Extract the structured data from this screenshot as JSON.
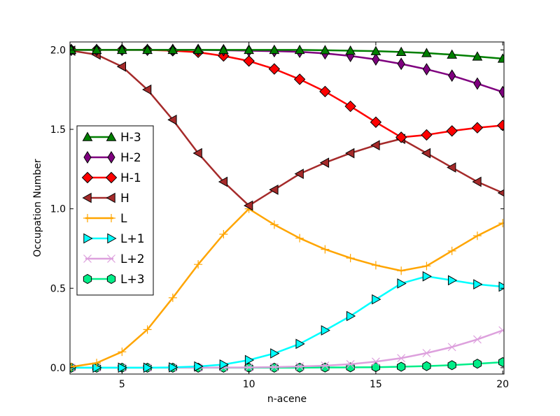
{
  "chart_data": {
    "type": "line",
    "title": "",
    "xlabel": "n-acene",
    "ylabel": "Occupation Number",
    "xlim": [
      2.95,
      20.05
    ],
    "ylim": [
      -0.04,
      2.05
    ],
    "xticks": [
      5,
      10,
      15,
      20
    ],
    "yticks": [
      0.0,
      0.5,
      1.0,
      1.5,
      2.0
    ],
    "xtick_labels": [
      "5",
      "10",
      "15",
      "20"
    ],
    "ytick_labels": [
      "0.0",
      "0.5",
      "1.0",
      "1.5",
      "2.0"
    ],
    "grid": false,
    "legend_position": "center-left",
    "x": [
      3,
      4,
      5,
      6,
      7,
      8,
      9,
      10,
      11,
      12,
      13,
      14,
      15,
      16,
      17,
      18,
      19,
      20
    ],
    "series": [
      {
        "name": "H-3",
        "color": "#007F00",
        "marker": "triangle-up",
        "values": [
          2.0,
          2.0,
          2.0,
          2.0,
          2.0,
          2.0,
          2.0,
          2.0,
          2.0,
          2.0,
          1.998,
          1.995,
          1.992,
          1.987,
          1.98,
          1.97,
          1.958,
          1.945
        ]
      },
      {
        "name": "H-2",
        "color": "#7F007F",
        "marker": "thin-diamond",
        "values": [
          2.0,
          2.0,
          2.0,
          2.0,
          2.0,
          2.0,
          1.998,
          1.995,
          1.992,
          1.988,
          1.978,
          1.962,
          1.94,
          1.912,
          1.878,
          1.838,
          1.788,
          1.735
        ]
      },
      {
        "name": "H-1",
        "color": "#FF0000",
        "marker": "diamond",
        "values": [
          2.0,
          2.0,
          2.0,
          2.0,
          1.995,
          1.985,
          1.962,
          1.93,
          1.88,
          1.815,
          1.738,
          1.645,
          1.545,
          1.45,
          1.465,
          1.49,
          1.51,
          1.525
        ]
      },
      {
        "name": "H",
        "color": "#A52A2A",
        "marker": "triangle-left",
        "values": [
          1.995,
          1.97,
          1.895,
          1.75,
          1.56,
          1.35,
          1.17,
          1.02,
          1.12,
          1.22,
          1.29,
          1.35,
          1.4,
          1.44,
          1.35,
          1.26,
          1.17,
          1.1
        ]
      },
      {
        "name": "L",
        "color": "#FFA500",
        "marker": "plus",
        "values": [
          0.005,
          0.03,
          0.1,
          0.24,
          0.44,
          0.65,
          0.84,
          1.0,
          0.9,
          0.815,
          0.745,
          0.69,
          0.645,
          0.61,
          0.64,
          0.735,
          0.83,
          0.91
        ]
      },
      {
        "name": "L+1",
        "color": "#00FFFF",
        "marker": "triangle-right",
        "values": [
          0.0,
          0.0,
          0.0,
          0.0,
          0.002,
          0.008,
          0.02,
          0.048,
          0.09,
          0.15,
          0.235,
          0.325,
          0.43,
          0.53,
          0.575,
          0.55,
          0.525,
          0.51
        ]
      },
      {
        "name": "L+2",
        "color": "#DDA0DD",
        "marker": "x",
        "values": [
          0.0,
          0.0,
          0.0,
          0.0,
          0.0,
          0.0,
          0.001,
          0.002,
          0.004,
          0.008,
          0.013,
          0.022,
          0.038,
          0.06,
          0.092,
          0.13,
          0.178,
          0.235
        ]
      },
      {
        "name": "L+3",
        "color": "#00EE88",
        "marker": "hexagon",
        "values": [
          0.0,
          0.0,
          0.0,
          0.0,
          0.0,
          0.0,
          0.0,
          0.0,
          0.0,
          0.0,
          0.001,
          0.002,
          0.003,
          0.006,
          0.01,
          0.016,
          0.025,
          0.035
        ]
      }
    ]
  }
}
